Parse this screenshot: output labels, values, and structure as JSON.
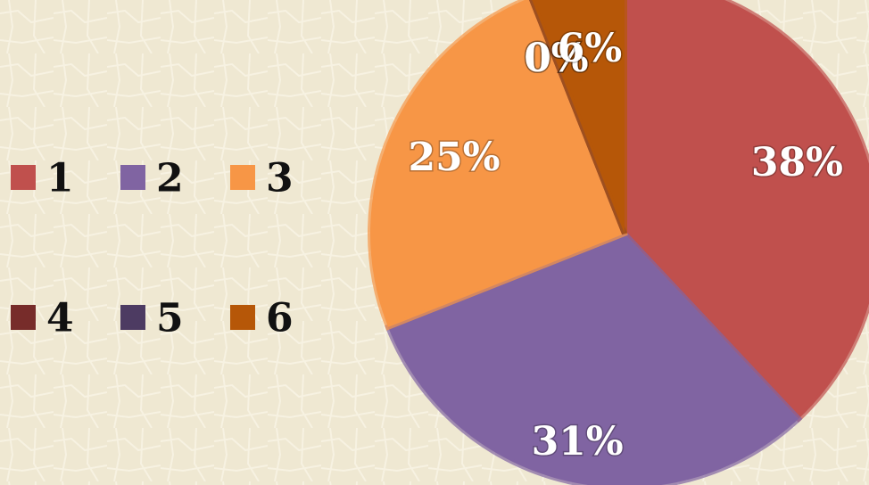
{
  "chart_data": {
    "type": "pie",
    "categories": [
      "1",
      "2",
      "3",
      "4",
      "5",
      "6"
    ],
    "values": [
      38,
      31,
      25,
      0,
      0,
      6
    ],
    "value_labels": [
      "38%",
      "31%",
      "25%",
      "0%",
      "0%",
      "6%"
    ],
    "colors": [
      "#c0504d",
      "#8064a2",
      "#f79646",
      "#772c2a",
      "#4d3b62",
      "#b65708"
    ],
    "legend": "left"
  }
}
